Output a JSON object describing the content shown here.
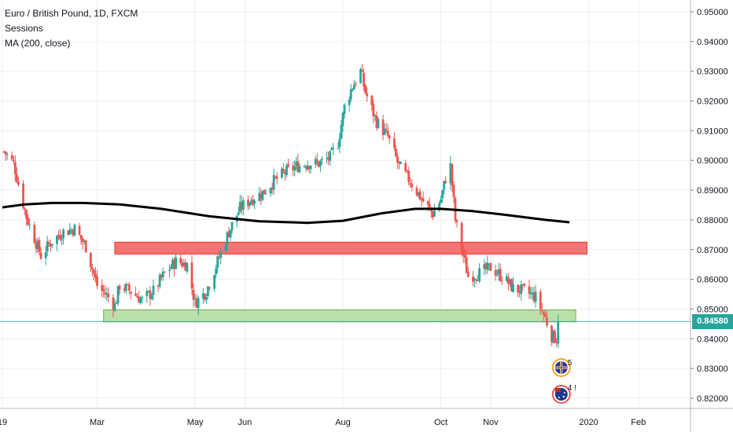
{
  "legend": {
    "symbol": "Euro / British Pound, 1D, FXCM",
    "indicator_1": "Sessions",
    "indicator_2": "MA (200, close)"
  },
  "current_price": "0.84580",
  "badges": {
    "top": "5",
    "bottom": "4 !"
  },
  "colors": {
    "up": "#26a69a",
    "down": "#ef5350",
    "ma": "#000000",
    "resistance_zone": "#f47373",
    "support_zone": "#b9dfab",
    "grid": "#eceff3"
  },
  "chart_data": {
    "type": "candlestick",
    "symbol": "EURGBP",
    "timeframe": "1D",
    "y_axis": {
      "range": [
        0.8175,
        0.9545
      ],
      "ticks": [
        "0.82000",
        "0.83000",
        "0.84000",
        "0.85000",
        "0.86000",
        "0.87000",
        "0.88000",
        "0.89000",
        "0.90000",
        "0.91000",
        "0.92000",
        "0.93000",
        "0.94000",
        "0.95000"
      ],
      "tick_values": [
        0.82,
        0.83,
        0.84,
        0.85,
        0.86,
        0.87,
        0.88,
        0.89,
        0.9,
        0.91,
        0.92,
        0.93,
        0.94,
        0.95
      ]
    },
    "x_axis": {
      "labels": [
        "19",
        "Mar",
        "May",
        "Jun",
        "Aug",
        "Oct",
        "Nov",
        "2020",
        "Feb"
      ],
      "label_dates": [
        "2019-01-01",
        "2019-03-01",
        "2019-05-01",
        "2019-06-01",
        "2019-08-01",
        "2019-10-01",
        "2019-11-01",
        "2020-01-01",
        "2020-02-01"
      ]
    },
    "price_path": [
      [
        "2019-01-02",
        0.903
      ],
      [
        "2019-01-08",
        0.899
      ],
      [
        "2019-01-16",
        0.881
      ],
      [
        "2019-01-25",
        0.868
      ],
      [
        "2019-02-01",
        0.873
      ],
      [
        "2019-02-08",
        0.876
      ],
      [
        "2019-02-15",
        0.877
      ],
      [
        "2019-02-22",
        0.871
      ],
      [
        "2019-03-01",
        0.858
      ],
      [
        "2019-03-08",
        0.854
      ],
      [
        "2019-03-12",
        0.851
      ],
      [
        "2019-03-15",
        0.858
      ],
      [
        "2019-03-22",
        0.856
      ],
      [
        "2019-03-29",
        0.853
      ],
      [
        "2019-04-05",
        0.856
      ],
      [
        "2019-04-12",
        0.862
      ],
      [
        "2019-04-19",
        0.866
      ],
      [
        "2019-04-26",
        0.865
      ],
      [
        "2019-05-01",
        0.852
      ],
      [
        "2019-05-08",
        0.856
      ],
      [
        "2019-05-15",
        0.866
      ],
      [
        "2019-05-22",
        0.876
      ],
      [
        "2019-05-29",
        0.884
      ],
      [
        "2019-06-05",
        0.887
      ],
      [
        "2019-06-12",
        0.889
      ],
      [
        "2019-06-19",
        0.893
      ],
      [
        "2019-06-26",
        0.896
      ],
      [
        "2019-07-03",
        0.898
      ],
      [
        "2019-07-10",
        0.899
      ],
      [
        "2019-07-17",
        0.899
      ],
      [
        "2019-07-24",
        0.901
      ],
      [
        "2019-07-29",
        0.906
      ],
      [
        "2019-08-02",
        0.918
      ],
      [
        "2019-08-07",
        0.925
      ],
      [
        "2019-08-12",
        0.93
      ],
      [
        "2019-08-15",
        0.923
      ],
      [
        "2019-08-22",
        0.913
      ],
      [
        "2019-08-29",
        0.908
      ],
      [
        "2019-09-05",
        0.898
      ],
      [
        "2019-09-12",
        0.893
      ],
      [
        "2019-09-19",
        0.887
      ],
      [
        "2019-09-26",
        0.882
      ],
      [
        "2019-10-01",
        0.887
      ],
      [
        "2019-10-04",
        0.894
      ],
      [
        "2019-10-07",
        0.898
      ],
      [
        "2019-10-10",
        0.88
      ],
      [
        "2019-10-15",
        0.868
      ],
      [
        "2019-10-18",
        0.861
      ],
      [
        "2019-10-25",
        0.862
      ],
      [
        "2019-11-01",
        0.864
      ],
      [
        "2019-11-08",
        0.861
      ],
      [
        "2019-11-15",
        0.857
      ],
      [
        "2019-11-22",
        0.856
      ],
      [
        "2019-11-29",
        0.854
      ],
      [
        "2019-12-05",
        0.847
      ],
      [
        "2019-12-09",
        0.841
      ],
      [
        "2019-12-12",
        0.84
      ],
      [
        "2019-12-13",
        0.8458
      ]
    ],
    "ma_200": [
      [
        "2019-01-01",
        0.8842
      ],
      [
        "2019-01-15",
        0.8852
      ],
      [
        "2019-02-01",
        0.8857
      ],
      [
        "2019-02-20",
        0.8857
      ],
      [
        "2019-03-15",
        0.8852
      ],
      [
        "2019-04-10",
        0.8837
      ],
      [
        "2019-05-10",
        0.8812
      ],
      [
        "2019-06-10",
        0.8795
      ],
      [
        "2019-07-10",
        0.879
      ],
      [
        "2019-08-01",
        0.8797
      ],
      [
        "2019-08-25",
        0.8822
      ],
      [
        "2019-09-15",
        0.8837
      ],
      [
        "2019-10-01",
        0.8837
      ],
      [
        "2019-10-20",
        0.883
      ],
      [
        "2019-11-10",
        0.8817
      ],
      [
        "2019-12-05",
        0.88
      ],
      [
        "2019-12-20",
        0.8792
      ]
    ],
    "zones": [
      {
        "name": "resistance",
        "from": "2019-03-12",
        "to": "2019-12-31",
        "y_low": 0.8685,
        "y_high": 0.8725
      },
      {
        "name": "support",
        "from": "2019-03-05",
        "to": "2019-12-24",
        "y_low": 0.8457,
        "y_high": 0.8497
      }
    ],
    "current_price_line": 0.8458,
    "grid": true
  }
}
